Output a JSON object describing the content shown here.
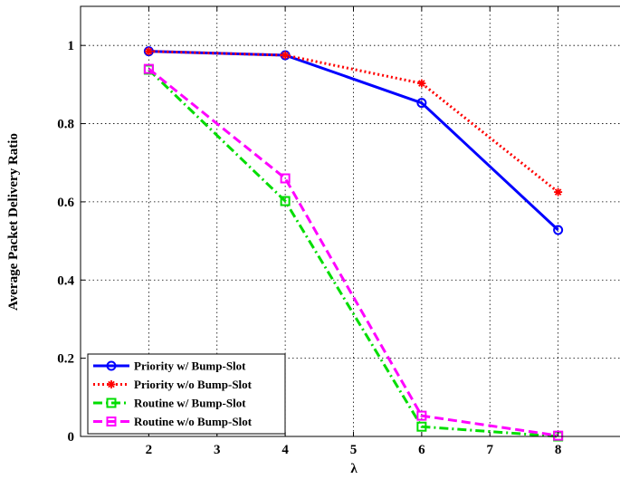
{
  "chart_data": {
    "type": "line",
    "title": "",
    "xlabel": "λ",
    "ylabel": "Average Packet Delivery Ratio",
    "xlim": [
      1,
      9
    ],
    "ylim": [
      0,
      1.1
    ],
    "xticks": [
      2,
      3,
      4,
      5,
      6,
      7,
      8
    ],
    "yticks": [
      0,
      0.2,
      0.4,
      0.6,
      0.8,
      1
    ],
    "ytick_labels": [
      "0",
      "0.2",
      "0.4",
      "0.6",
      "0.8",
      "1"
    ],
    "grid": true,
    "legend_position": "bottom-left",
    "x": [
      2,
      4,
      6,
      8
    ],
    "series": [
      {
        "name": "Priority w/ Bump-Slot",
        "values": [
          0.985,
          0.975,
          0.853,
          0.528
        ],
        "color": "#0000ff",
        "line_style": "solid",
        "marker": "circle"
      },
      {
        "name": "Priority w/o Bump-Slot",
        "values": [
          0.985,
          0.975,
          0.903,
          0.625
        ],
        "color": "#ff0000",
        "line_style": "dotted",
        "marker": "star"
      },
      {
        "name": "Routine w/ Bump-Slot",
        "values": [
          0.938,
          0.602,
          0.025,
          0.0
        ],
        "color": "#00dd00",
        "line_style": "dash-dot",
        "marker": "square"
      },
      {
        "name": "Routine w/o Bump-Slot",
        "values": [
          0.94,
          0.66,
          0.053,
          0.002
        ],
        "color": "#ff00ff",
        "line_style": "dashed",
        "marker": "square"
      }
    ]
  }
}
